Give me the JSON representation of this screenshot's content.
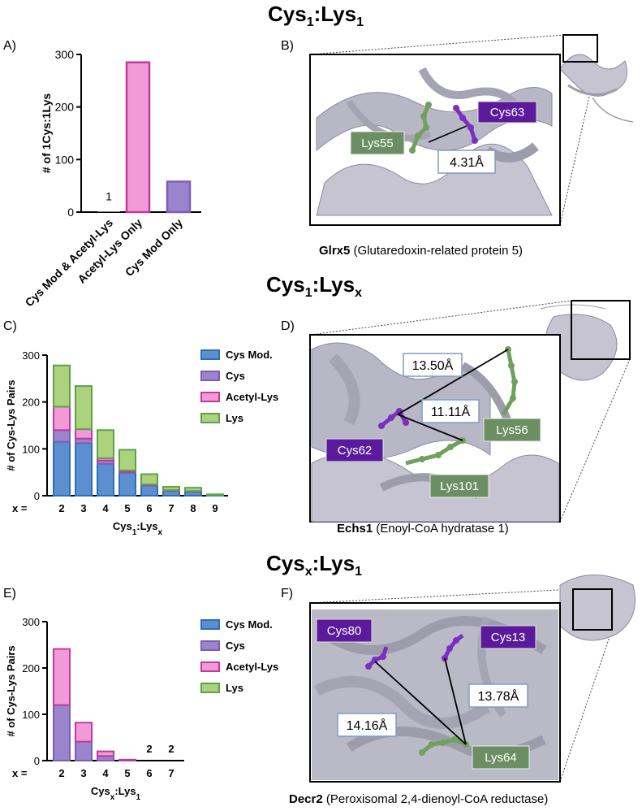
{
  "sections": {
    "top": {
      "prefix": "Cys",
      "sub1": "1",
      "mid": ":Lys",
      "sub2": "1"
    },
    "middle": {
      "prefix": "Cys",
      "sub1": "1",
      "mid": ":Lys",
      "sub2": "x"
    },
    "bottom": {
      "prefix": "Cys",
      "sub1": "x",
      "mid": ":Lys",
      "sub2": "1"
    }
  },
  "panel_letters": {
    "a": "A)",
    "b": "B)",
    "c": "C)",
    "d": "D)",
    "e": "E)",
    "f": "F)"
  },
  "colors": {
    "cys_mod": "#2c6fb7",
    "cys_mod_fill": "#5b8fd0",
    "cys": "#7c5db7",
    "cys_fill": "#9a84cc",
    "acetyl": "#c2399a",
    "acetyl_fill": "#f19ad7",
    "lys": "#5ba34a",
    "lys_fill": "#acd27e",
    "protein": "#b8b7c5",
    "protein_dark": "#8c8b9b",
    "cys_label_bg": "#5a1a9b",
    "lys_label_bg": "#6b8f63"
  },
  "chart_data": [
    {
      "id": "A",
      "type": "bar",
      "categories": [
        "Cys Mod & Acetyl-Lys",
        "Acetyl-Lys Only",
        "Cys Mod Only"
      ],
      "values": [
        1,
        285,
        58
      ],
      "bar_labels": [
        "1",
        "",
        ""
      ],
      "ylabel": "# of 1Cys:1Lys",
      "xlabel": "",
      "ylim": [
        0,
        300
      ],
      "yticks": [
        0,
        100,
        200,
        300
      ],
      "fills": [
        "#f19ad7",
        "#f19ad7",
        "#9a84cc"
      ],
      "strokes": [
        "#c2399a",
        "#c2399a",
        "#7c5db7"
      ]
    },
    {
      "id": "C",
      "type": "bar",
      "stacked": true,
      "x_prefix": "x =",
      "categories": [
        "2",
        "3",
        "4",
        "5",
        "6",
        "7",
        "8",
        "9"
      ],
      "series": [
        {
          "name": "Cys Mod.",
          "values": [
            115,
            112,
            68,
            49,
            22,
            10,
            8,
            1
          ]
        },
        {
          "name": "Cys",
          "values": [
            25,
            10,
            7,
            2,
            1,
            1,
            1,
            0
          ]
        },
        {
          "name": "Acetyl-Lys",
          "values": [
            50,
            20,
            5,
            3,
            1,
            1,
            1,
            0
          ]
        },
        {
          "name": "Lys",
          "values": [
            88,
            92,
            60,
            44,
            22,
            7,
            7,
            2
          ]
        }
      ],
      "xlabel": {
        "base": "Cys",
        "sub1": "1",
        "mid": ":Lys",
        "sub2": "x"
      },
      "ylabel": "# of Cys-Lys Pairs",
      "ylim": [
        0,
        300
      ],
      "yticks": [
        0,
        100,
        200,
        300
      ],
      "legend": "right"
    },
    {
      "id": "E",
      "type": "bar",
      "stacked": true,
      "x_prefix": "x =",
      "categories": [
        "2",
        "3",
        "4",
        "5",
        "6",
        "7"
      ],
      "series": [
        {
          "name": "Cys Mod.",
          "values": [
            0,
            0,
            0,
            0,
            0,
            0
          ]
        },
        {
          "name": "Cys",
          "values": [
            120,
            41,
            10,
            1,
            0,
            0
          ]
        },
        {
          "name": "Acetyl-Lys",
          "values": [
            121,
            41,
            10,
            1,
            0,
            0
          ]
        },
        {
          "name": "Lys",
          "values": [
            0,
            0,
            0,
            0,
            0,
            0
          ]
        }
      ],
      "bar_labels": [
        "",
        "",
        "",
        "",
        "2",
        "2"
      ],
      "xlabel": {
        "base": "Cys",
        "sub1": "x",
        "mid": ":Lys",
        "sub2": "1"
      },
      "ylabel": "# of Cys-Lys Pairs",
      "ylim": [
        0,
        300
      ],
      "yticks": [
        0,
        100,
        200,
        300
      ],
      "legend": "right"
    }
  ],
  "structures": {
    "b": {
      "labels": {
        "cys63": "Cys63",
        "lys55": "Lys55",
        "dist": "4.31Å"
      },
      "caption_bold": "Glrx5",
      "caption_rest": " (Glutaredoxin-related protein 5)"
    },
    "d": {
      "labels": {
        "d1": "13.50Å",
        "d2": "11.11Å",
        "cys62": "Cys62",
        "lys56": "Lys56",
        "lys101": "Lys101"
      },
      "caption_bold": "Echs1",
      "caption_rest": " (Enoyl-CoA hydratase 1)"
    },
    "f": {
      "labels": {
        "cys80": "Cys80",
        "cys13": "Cys13",
        "d1": "13.78Å",
        "d2": "14.16Å",
        "lys64": "Lys64"
      },
      "caption_bold": "Decr2",
      "caption_rest": " (Peroxisomal 2,4-dienoyl-CoA reductase)"
    }
  }
}
